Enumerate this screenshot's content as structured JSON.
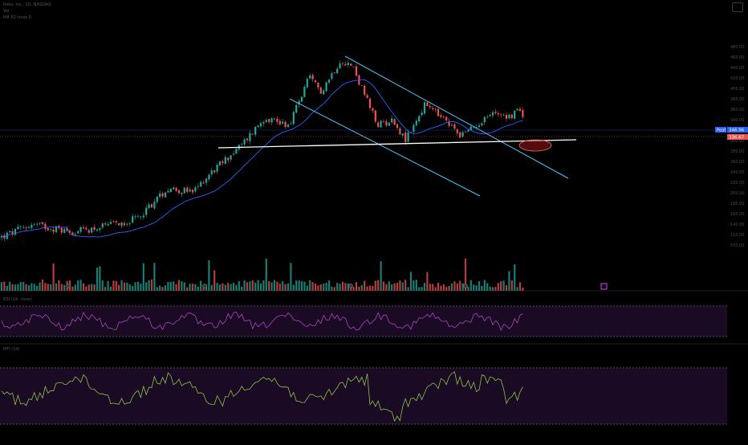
{
  "header": {
    "symbol_line": "Roku, Inc., 1D, NASDAQ",
    "vol_line": "Vol",
    "ma_line": "MA 50 close 0"
  },
  "panes": {
    "rsi_title": "RSI (14, close)",
    "mfi_title": "MFI (14)"
  },
  "price_tags": {
    "post_label": "Post",
    "post_value": "346.96",
    "last_value": "336.67"
  },
  "colors": {
    "up": "#26a69a",
    "down": "#ef5350",
    "ma": "#2962ff",
    "channel": "#4fc3f7",
    "support": "#ffffff",
    "rsi": "#ab47bc",
    "mfi": "#8bc34a",
    "band": "#1a0a24",
    "ellipse": "#b71c1c"
  },
  "chart_data": {
    "type": "candlestick",
    "price_scale_ticks": [
      480,
      460,
      440,
      420,
      400,
      380,
      360,
      340,
      320,
      300,
      280,
      260,
      240,
      220,
      200,
      180,
      160,
      140,
      120,
      100
    ],
    "key_points": [
      {
        "label": "start",
        "price": 115
      },
      {
        "label": "peak",
        "price": 456
      },
      {
        "label": "channel_low",
        "price": 315
      },
      {
        "label": "last",
        "price": 336.67
      }
    ],
    "rsi_band": [
      30,
      70
    ],
    "mfi_band": [
      20,
      80
    ]
  }
}
